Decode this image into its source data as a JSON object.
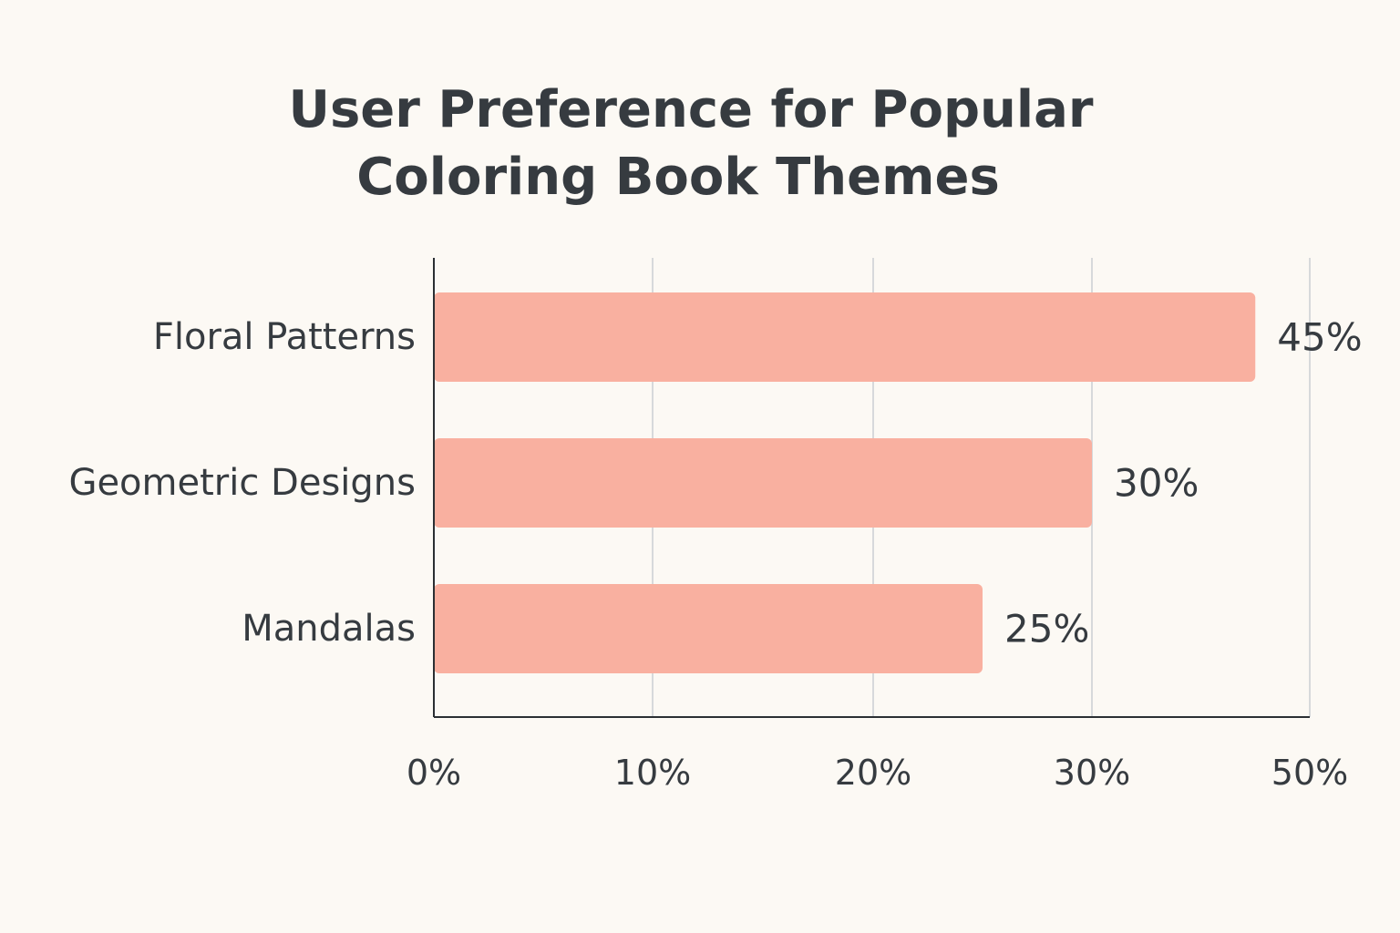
{
  "chart_data": {
    "type": "bar",
    "orientation": "horizontal",
    "title_lines": [
      "User Preference for Popular",
      "Coloring Book Themes"
    ],
    "categories": [
      "Floral Patterns",
      "Geometric Designs",
      "Mandalas"
    ],
    "values": [
      45,
      30,
      25
    ],
    "value_labels": [
      "45%",
      "30%",
      "25%"
    ],
    "x_ticks": [
      0,
      10,
      20,
      30,
      50
    ],
    "x_tick_labels": [
      "0%",
      "10%",
      "20%",
      "30%",
      "50%"
    ],
    "grid": true,
    "bar_color": "#f9b0a0",
    "text_color": "#363b40",
    "grid_color": "#d7d9db",
    "background": "#fcf9f4"
  }
}
